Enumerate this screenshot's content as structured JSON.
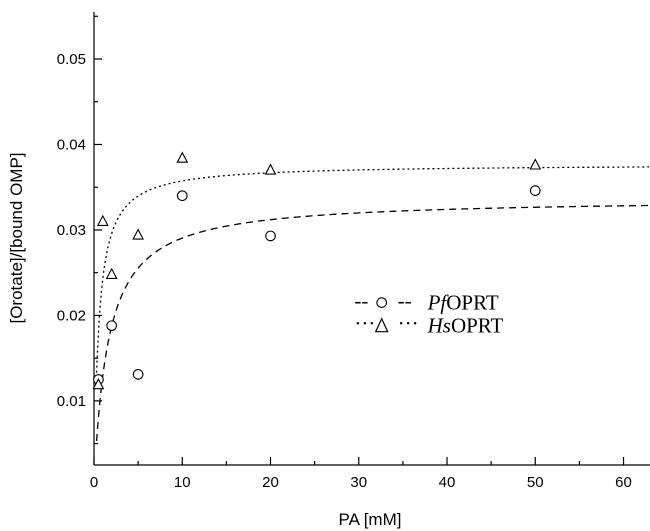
{
  "chart_data": {
    "type": "scatter",
    "xlabel": "PA [mM]",
    "ylabel": "[Orotate]/[bound OMP]",
    "xlim": [
      0,
      63
    ],
    "ylim": [
      0.0025,
      0.0555
    ],
    "x_ticks": [
      0,
      10,
      20,
      30,
      40,
      50,
      60
    ],
    "y_ticks": [
      0.01,
      0.02,
      0.03,
      0.04,
      0.05
    ],
    "y_tick_labels": [
      "0.01",
      "0.02",
      "0.03",
      "0.04",
      "0.05"
    ],
    "grid": false,
    "legend_position": "center-right",
    "series": [
      {
        "name": "PfOPRT",
        "name_italic": "Pf",
        "name_rest": "OPRT",
        "marker": "circle",
        "line_style": "dashed",
        "line_prefix": "--",
        "line_suffix": "--",
        "points": [
          {
            "x": 0.5,
            "y": 0.0125
          },
          {
            "x": 2,
            "y": 0.0188
          },
          {
            "x": 5,
            "y": 0.0131
          },
          {
            "x": 10,
            "y": 0.034
          },
          {
            "x": 20,
            "y": 0.0293
          },
          {
            "x": 50,
            "y": 0.0346
          }
        ],
        "fit": {
          "model": "hyperbolic",
          "vmax": 0.0337,
          "km": 1.6
        }
      },
      {
        "name": "HsOPRT",
        "name_italic": "Hs",
        "name_rest": "OPRT",
        "marker": "triangle",
        "line_style": "dotted",
        "line_prefix": "···",
        "line_suffix": "···",
        "points": [
          {
            "x": 0.5,
            "y": 0.0119
          },
          {
            "x": 1,
            "y": 0.031
          },
          {
            "x": 2,
            "y": 0.0248
          },
          {
            "x": 5,
            "y": 0.0294
          },
          {
            "x": 10,
            "y": 0.0384
          },
          {
            "x": 20,
            "y": 0.037
          },
          {
            "x": 50,
            "y": 0.0376
          }
        ],
        "fit": {
          "model": "hyperbolic",
          "vmax": 0.0377,
          "km": 0.55
        }
      }
    ]
  }
}
